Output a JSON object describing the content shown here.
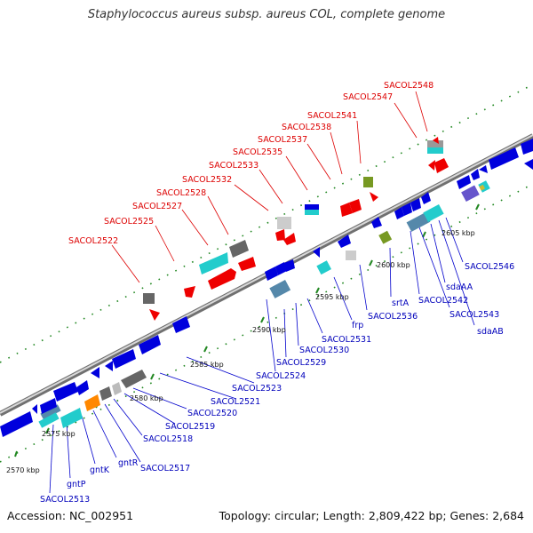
{
  "title": "Staphylococcus aureus subsp. aureus COL, complete genome",
  "footer": {
    "accession": "Accession: NC_002951",
    "topology": "Topology: circular; Length: 2,809,422 bp; Genes: 2,684"
  },
  "colors": {
    "forward_strand": "#dd0000",
    "reverse_strand": "#0000dd",
    "backbone": "#8a8a8a",
    "dotted_track": "#228822"
  },
  "ticks": [
    "2570 kbp",
    "2575 kbp",
    "2580 kbp",
    "2585 kbp",
    "2590 kbp",
    "2595 kbp",
    "2600 kbp",
    "2605 kbp"
  ],
  "labels_forward": [
    "SACOL2522",
    "SACOL2525",
    "SACOL2527",
    "SACOL2528",
    "SACOL2532",
    "SACOL2533",
    "SACOL2535",
    "SACOL2537",
    "SACOL2538",
    "SACOL2541",
    "SACOL2547",
    "SACOL2548"
  ],
  "labels_reverse": [
    "SACOL2513",
    "gntP",
    "gntK",
    "gntR",
    "SACOL2517",
    "SACOL2518",
    "SACOL2519",
    "SACOL2520",
    "SACOL2521",
    "SACOL2523",
    "SACOL2524",
    "SACOL2529",
    "SACOL2530",
    "SACOL2531",
    "frp",
    "SACOL2536",
    "srtA",
    "SACOL2542",
    "SACOL2543",
    "sdaAA",
    "sdaAB",
    "SACOL2546"
  ]
}
